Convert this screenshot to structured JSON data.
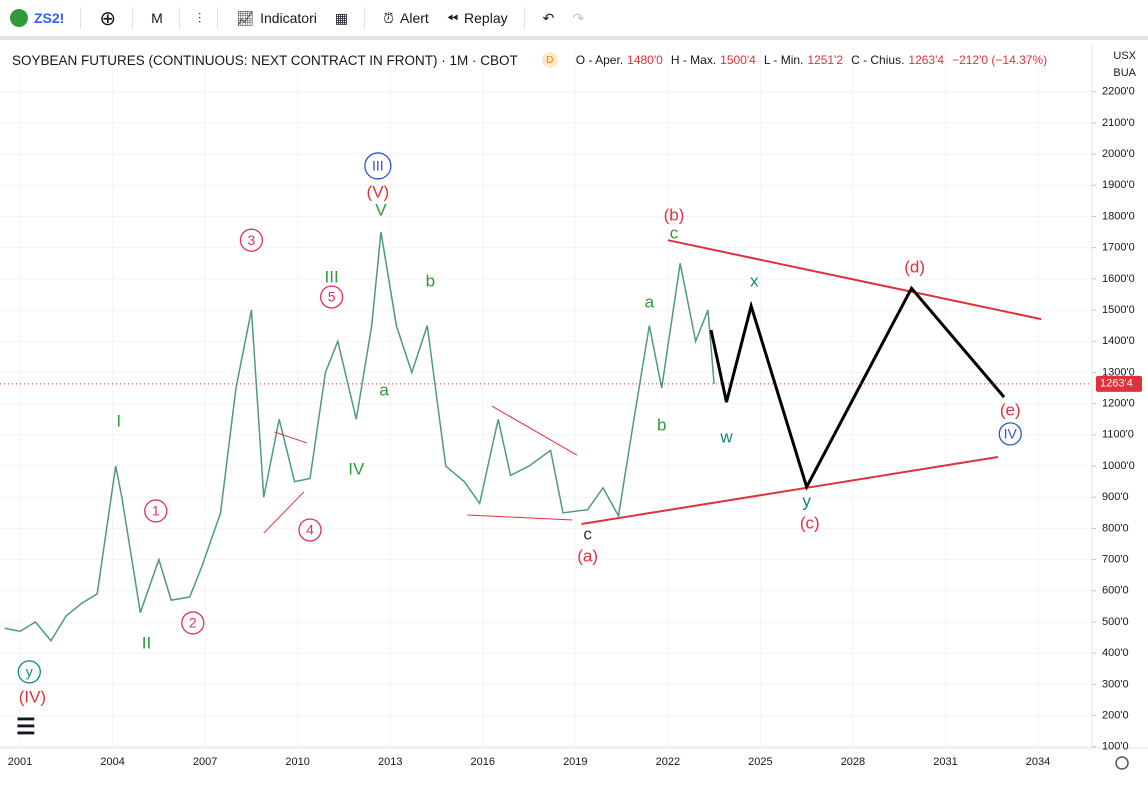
{
  "toolbar": {
    "symbol": "ZS2!",
    "interval": "M",
    "indicators": "Indicatori",
    "alert": "Alert",
    "replay": "Replay"
  },
  "legend": {
    "title": "SOYBEAN FUTURES (CONTINUOUS: NEXT CONTRACT IN FRONT) · 1M · CBOT",
    "badge": "D",
    "open_label": "O - Aper.",
    "open": "1480'0",
    "high_label": "H - Max.",
    "high": "1500'4",
    "low_label": "L - Min.",
    "low": "1251'2",
    "close_label": "C - Chius.",
    "close": "1263'4",
    "change": "−212'0 (−14.37%)"
  },
  "currency": "USX",
  "unit": "BUA",
  "chart_data": {
    "type": "line",
    "color": "#4f9a7e",
    "grid": true,
    "x": [
      2000.5,
      2001,
      2001.5,
      2002,
      2002.5,
      2003,
      2003.5,
      2004.1,
      2004.3,
      2004.9,
      2005.5,
      2005.9,
      2006.5,
      2006.9,
      2007.5,
      2008.0,
      2008.5,
      2008.9,
      2009.4,
      2009.9,
      2010.4,
      2010.9,
      2011.3,
      2011.9,
      2012.4,
      2012.7,
      2013.2,
      2013.7,
      2014.2,
      2014.8,
      2015.4,
      2015.9,
      2016.5,
      2016.9,
      2017.5,
      2018.2,
      2018.6,
      2019.4,
      2019.9,
      2020.4,
      2020.9,
      2021.4,
      2021.8,
      2022.4,
      2022.9,
      2023.3,
      2023.5
    ],
    "values": [
      480,
      470,
      500,
      440,
      520,
      560,
      590,
      1000,
      900,
      530,
      700,
      570,
      580,
      680,
      850,
      1250,
      1500,
      900,
      1150,
      950,
      960,
      1300,
      1400,
      1150,
      1450,
      1750,
      1450,
      1300,
      1450,
      1000,
      950,
      880,
      1150,
      970,
      1000,
      1050,
      850,
      860,
      930,
      840,
      1150,
      1450,
      1250,
      1650,
      1400,
      1500,
      1263.5
    ],
    "last_price": {
      "value": 1263.5,
      "label": "1263'4"
    },
    "projection": {
      "color": "#000000",
      "x": [
        2023.4,
        2023.9,
        2024.7,
        2026.5,
        2029.9,
        2032.9
      ],
      "values": [
        1436,
        1205,
        1513,
        933,
        1570,
        1221
      ]
    },
    "trendlines": [
      {
        "color": "#e0323c",
        "x": [
          2022.0,
          2034.1
        ],
        "values": [
          1724,
          1471
        ]
      },
      {
        "color": "#e0323c",
        "x": [
          2019.2,
          2032.7
        ],
        "values": [
          814,
          1029
        ]
      },
      {
        "color": "#e0323c",
        "x": [
          2016.3,
          2019.05
        ],
        "values": [
          1192,
          1035
        ]
      },
      {
        "color": "#e0323c",
        "x": [
          2015.5,
          2018.9
        ],
        "values": [
          843,
          827
        ]
      },
      {
        "color": "#e0323c",
        "x": [
          2009.25,
          2010.3
        ],
        "values": [
          1109,
          1074
        ]
      },
      {
        "color": "#e0323c",
        "x": [
          2008.9,
          2010.2
        ],
        "values": [
          785,
          917
        ]
      }
    ],
    "annotations": [
      {
        "text": "y",
        "x": 2001.3,
        "y": 340,
        "color": "#0e8a7a",
        "circle": true
      },
      {
        "text": "(IV)",
        "x": 2001.4,
        "y": 260,
        "color": "#e0323c",
        "circle": false
      },
      {
        "text": "I",
        "x": 2004.2,
        "y": 1144,
        "color": "#2e9a3a",
        "circle": false
      },
      {
        "text": "II",
        "x": 2005.1,
        "y": 433,
        "color": "#2e9a3a",
        "circle": false
      },
      {
        "text": "1",
        "x": 2005.4,
        "y": 856,
        "color": "#e0325a",
        "circle": true
      },
      {
        "text": "2",
        "x": 2006.6,
        "y": 497,
        "color": "#e0325a",
        "circle": true
      },
      {
        "text": "3",
        "x": 2008.5,
        "y": 1724,
        "color": "#e0325a",
        "circle": true
      },
      {
        "text": "4",
        "x": 2010.4,
        "y": 795,
        "color": "#e0325a",
        "circle": true
      },
      {
        "text": "5",
        "x": 2011.1,
        "y": 1542,
        "color": "#e0325a",
        "circle": true
      },
      {
        "text": "III",
        "x": 2011.1,
        "y": 1606,
        "color": "#2e9a3a",
        "circle": false
      },
      {
        "text": "IV",
        "x": 2011.9,
        "y": 990,
        "color": "#2e9a3a",
        "circle": false
      },
      {
        "text": "III",
        "x": 2012.6,
        "y": 1962,
        "color": "#2a57c9",
        "circle": true
      },
      {
        "text": "(V)",
        "x": 2012.6,
        "y": 1878,
        "color": "#e0323c",
        "circle": false
      },
      {
        "text": "V",
        "x": 2012.7,
        "y": 1821,
        "color": "#2e9a3a",
        "circle": false
      },
      {
        "text": "b",
        "x": 2014.3,
        "y": 1593,
        "color": "#2e9a3a",
        "circle": false
      },
      {
        "text": "a",
        "x": 2012.8,
        "y": 1244,
        "color": "#2e9a3a",
        "circle": false
      },
      {
        "text": "c",
        "x": 2019.4,
        "y": 782,
        "color": "#333333",
        "circle": false
      },
      {
        "text": "(a)",
        "x": 2019.4,
        "y": 712,
        "color": "#e0323c",
        "circle": false
      },
      {
        "text": "a",
        "x": 2021.4,
        "y": 1526,
        "color": "#2e9a3a",
        "circle": false
      },
      {
        "text": "b",
        "x": 2021.8,
        "y": 1131,
        "color": "#2e9a3a",
        "circle": false
      },
      {
        "text": "(b)",
        "x": 2022.2,
        "y": 1804,
        "color": "#e0323c",
        "circle": false
      },
      {
        "text": "c",
        "x": 2022.2,
        "y": 1747,
        "color": "#2e9a3a",
        "circle": false
      },
      {
        "text": "x",
        "x": 2024.8,
        "y": 1593,
        "color": "#0e8a7a",
        "circle": false
      },
      {
        "text": "w",
        "x": 2023.9,
        "y": 1093,
        "color": "#0e8a7a",
        "circle": false
      },
      {
        "text": "y",
        "x": 2026.5,
        "y": 888,
        "color": "#0e8a7a",
        "circle": false
      },
      {
        "text": "(c)",
        "x": 2026.6,
        "y": 817,
        "color": "#e0323c",
        "circle": false
      },
      {
        "text": "(d)",
        "x": 2030.0,
        "y": 1638,
        "color": "#e0323c",
        "circle": false
      },
      {
        "text": "(e)",
        "x": 2033.1,
        "y": 1179,
        "color": "#e0323c",
        "circle": false
      },
      {
        "text": "IV",
        "x": 2033.1,
        "y": 1103,
        "color": "#2a57c9",
        "circle": true
      }
    ],
    "xlim": [
      2000.35,
      2035.75
    ],
    "xticks": [
      2001,
      2004,
      2007,
      2010,
      2013,
      2016,
      2019,
      2022,
      2025,
      2028,
      2031,
      2034
    ],
    "ylim": [
      96,
      2244
    ],
    "yticks": [
      {
        "value": 100,
        "label": "100'0"
      },
      {
        "value": 200,
        "label": "200'0"
      },
      {
        "value": 300,
        "label": "300'0"
      },
      {
        "value": 400,
        "label": "400'0"
      },
      {
        "value": 500,
        "label": "500'0"
      },
      {
        "value": 600,
        "label": "600'0"
      },
      {
        "value": 700,
        "label": "700'0"
      },
      {
        "value": 800,
        "label": "800'0"
      },
      {
        "value": 900,
        "label": "900'0"
      },
      {
        "value": 1000,
        "label": "1000'0"
      },
      {
        "value": 1100,
        "label": "1100'0"
      },
      {
        "value": 1200,
        "label": "1200'0"
      },
      {
        "value": 1300,
        "label": "1300'0"
      },
      {
        "value": 1400,
        "label": "1400'0"
      },
      {
        "value": 1500,
        "label": "1500'0"
      },
      {
        "value": 1600,
        "label": "1600'0"
      },
      {
        "value": 1700,
        "label": "1700'0"
      },
      {
        "value": 1800,
        "label": "1800'0"
      },
      {
        "value": 1900,
        "label": "1900'0"
      },
      {
        "value": 2000,
        "label": "2000'0"
      },
      {
        "value": 2100,
        "label": "2100'0"
      },
      {
        "value": 2200,
        "label": "2200'0"
      }
    ]
  }
}
